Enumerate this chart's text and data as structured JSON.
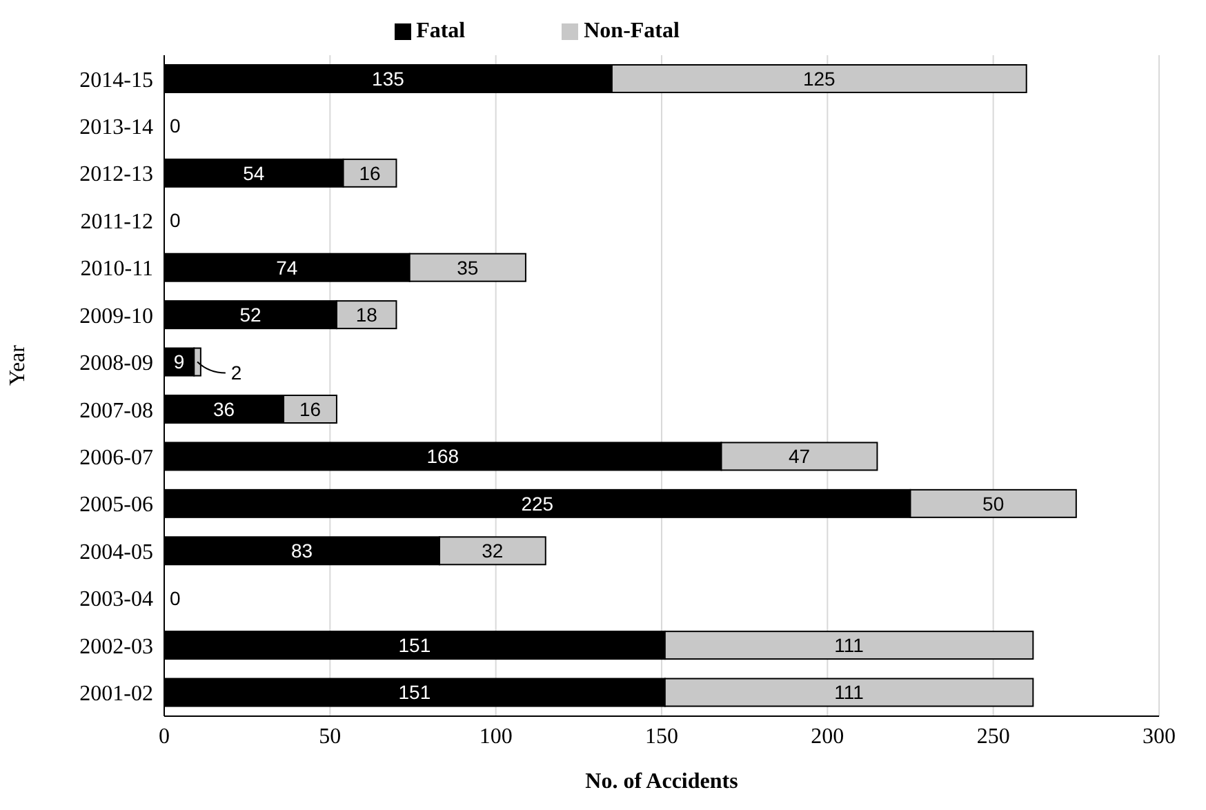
{
  "chart_data": {
    "type": "bar",
    "orientation": "horizontal",
    "stacked": true,
    "xlabel": "No. of Accidents",
    "ylabel": "Year",
    "categories": [
      "2014-15",
      "2013-14",
      "2012-13",
      "2011-12",
      "2010-11",
      "2009-10",
      "2008-09",
      "2007-08",
      "2006-07",
      "2005-06",
      "2004-05",
      "2003-04",
      "2002-03",
      "2001-02"
    ],
    "series": [
      {
        "name": "Fatal",
        "color": "#000000",
        "values": [
          135,
          0,
          54,
          0,
          74,
          52,
          9,
          36,
          168,
          225,
          83,
          0,
          151,
          151
        ],
        "value_labels": [
          "135",
          "0",
          "54",
          "0",
          "74",
          "52",
          "9",
          "36",
          "168",
          "225",
          "83",
          "0",
          "151",
          "151"
        ]
      },
      {
        "name": "Non-Fatal",
        "color": "#c8c8c8",
        "values": [
          125,
          0,
          16,
          0,
          35,
          18,
          2,
          16,
          47,
          50,
          32,
          0,
          111,
          111
        ],
        "value_labels": [
          "125",
          null,
          "16",
          null,
          "35",
          "18",
          "2",
          "16",
          "47",
          "50",
          "32",
          null,
          "111",
          "111"
        ]
      }
    ],
    "xlim": [
      0,
      300
    ],
    "xticks": [
      0,
      50,
      100,
      150,
      200,
      250,
      300
    ],
    "grid": "x",
    "legend": "top"
  }
}
